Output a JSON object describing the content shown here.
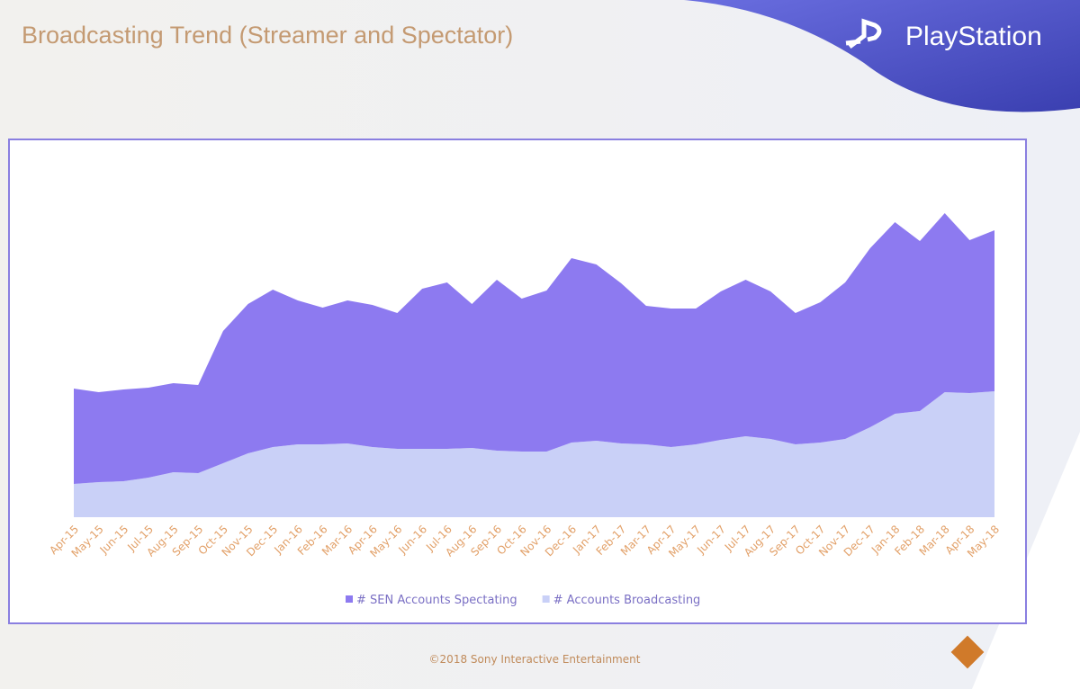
{
  "header": {
    "title": "Broadcasting Trend (Streamer and Spectator)",
    "brand": "PlayStation"
  },
  "footer": {
    "copyright": "©2018 Sony Interactive Entertainment"
  },
  "chart_data": {
    "type": "stacked-area",
    "categories": [
      "Apr-15",
      "May-15",
      "Jun-15",
      "Jul-15",
      "Aug-15",
      "Sep-15",
      "Oct-15",
      "Nov-15",
      "Dec-15",
      "Jan-16",
      "Feb-16",
      "Mar-16",
      "Apr-16",
      "May-16",
      "Jun-16",
      "Jul-16",
      "Aug-16",
      "Sep-16",
      "Oct-16",
      "Nov-16",
      "Dec-16",
      "Jan-17",
      "Feb-17",
      "Mar-17",
      "Apr-17",
      "May-17",
      "Jun-17",
      "Jul-17",
      "Aug-17",
      "Sep-17",
      "Oct-17",
      "Nov-17",
      "Dec-17",
      "Jan-18",
      "Feb-18",
      "Mar-18",
      "Apr-18",
      "May-18"
    ],
    "series": [
      {
        "name": "# SEN Accounts Spectating",
        "color": "#8d7af0",
        "values": [
          106,
          100,
          102,
          100,
          99,
          98,
          147,
          166,
          175,
          160,
          152,
          159,
          158,
          151,
          178,
          185,
          160,
          190,
          170,
          179,
          205,
          196,
          178,
          154,
          154,
          151,
          165,
          174,
          164,
          146,
          156,
          174,
          199,
          213,
          189,
          199,
          170,
          179
        ]
      },
      {
        "name": "# Accounts Broadcasting",
        "color": "#c9d0f7",
        "values": [
          37,
          39,
          40,
          44,
          50,
          49,
          60,
          71,
          78,
          81,
          81,
          82,
          78,
          76,
          76,
          76,
          77,
          74,
          73,
          73,
          83,
          85,
          82,
          81,
          78,
          81,
          86,
          90,
          87,
          81,
          83,
          87,
          100,
          115,
          118,
          139,
          138,
          140
        ]
      }
    ],
    "legend": "bottom"
  }
}
